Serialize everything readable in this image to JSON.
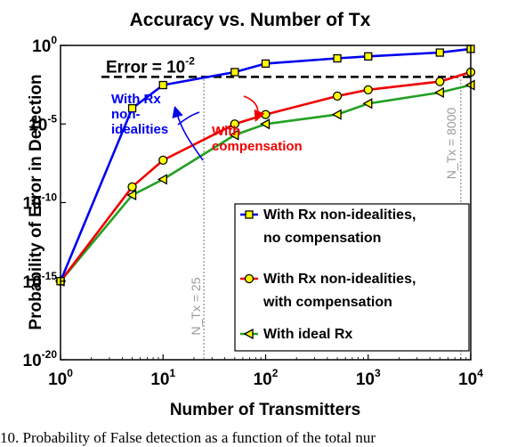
{
  "chart_data": {
    "type": "line",
    "title": "Accuracy vs. Number of Tx",
    "xlabel": "Number of Transmitters",
    "ylabel": "Probability of Error in Detection",
    "xscale": "log",
    "yscale": "log",
    "xlim": [
      1,
      10000
    ],
    "ylim": [
      1e-20,
      1
    ],
    "x_ticks": [
      {
        "base": "10",
        "exp": "0"
      },
      {
        "base": "10",
        "exp": "1"
      },
      {
        "base": "10",
        "exp": "2"
      },
      {
        "base": "10",
        "exp": "3"
      },
      {
        "base": "10",
        "exp": "4"
      }
    ],
    "y_ticks": [
      {
        "base": "10",
        "exp": "0"
      },
      {
        "base": "10",
        "exp": "-5"
      },
      {
        "base": "10",
        "exp": "-10"
      },
      {
        "base": "10",
        "exp": "-15"
      },
      {
        "base": "10",
        "exp": "-20"
      }
    ],
    "grid": false,
    "legend_position": "bottom-right",
    "series": [
      {
        "name_lines": [
          "With Rx non-idealities,",
          "no compensation"
        ],
        "color": "#0000ee",
        "marker": "square",
        "x": [
          1,
          5,
          10,
          50,
          100,
          500,
          1000,
          5000,
          10000
        ],
        "y": [
          1e-15,
          0.0001,
          0.003,
          0.02,
          0.07,
          0.15,
          0.2,
          0.35,
          0.6
        ]
      },
      {
        "name_lines": [
          "With Rx non-idealities,",
          "with compensation"
        ],
        "color": "#ee0000",
        "marker": "circle",
        "x": [
          1,
          5,
          10,
          50,
          100,
          500,
          1000,
          5000,
          10000
        ],
        "y": [
          1e-15,
          1e-09,
          5e-08,
          1e-05,
          4e-05,
          0.0006,
          0.0015,
          0.005,
          0.02
        ]
      },
      {
        "name_lines": [
          "With ideal Rx"
        ],
        "color": "#22a022",
        "marker": "triangle-left",
        "x": [
          1,
          5,
          10,
          50,
          100,
          500,
          1000,
          5000,
          10000
        ],
        "y": [
          1e-15,
          3e-10,
          3e-09,
          2e-06,
          1e-05,
          4e-05,
          0.0002,
          0.001,
          0.003
        ]
      }
    ],
    "threshold": {
      "label_base": "Error = 10",
      "label_exp": "-2",
      "y": 0.01,
      "style": "dashed",
      "color": "#000000"
    },
    "vlines": [
      {
        "x": 25,
        "label": "N_Tx = 25",
        "color": "#9a9a9a"
      },
      {
        "x": 8000,
        "label": "N_Tx = 8000",
        "color": "#9a9a9a"
      }
    ],
    "annotations": [
      {
        "lines": [
          "With Rx",
          "non-",
          "idealities"
        ],
        "color": "#0000ee"
      },
      {
        "lines": [
          "With",
          "compensation"
        ],
        "color": "#ee0000"
      }
    ]
  },
  "caption": "10. Probability of False detection as a function of the total nur"
}
